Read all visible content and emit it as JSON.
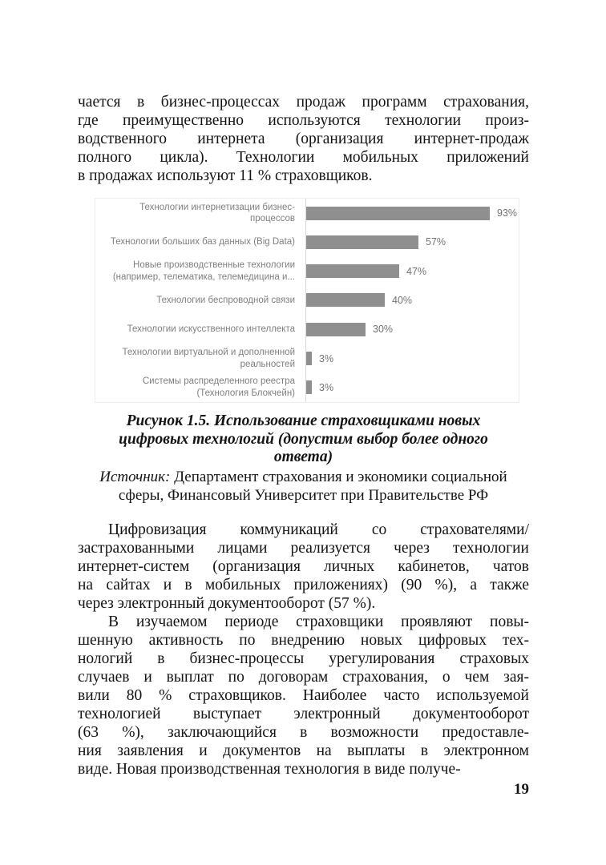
{
  "page": {
    "number": "19"
  },
  "body": {
    "para1_lines": [
      "чается в бизнес-процессах продаж программ страхования,",
      "где преимущественно используются технологии произ-",
      "водственного интернета (организация интернет-продаж",
      "полного цикла). Технологии мобильных приложений",
      "в продажах используют 11 % страховщиков."
    ],
    "para2_lines": [
      "Цифровизация коммуникаций со страхователями/",
      "застрахованными лицами реализуется через технологии",
      "интернет-систем (организация личных кабинетов, чатов",
      "на сайтах и в мобильных приложениях) (90 %), а также",
      "через электронный документооборот (57 %)."
    ],
    "para3_lines": [
      "В изучаемом периоде страховщики проявляют повы-",
      "шенную активность по внедрению новых цифровых тех-",
      "нологий в бизнес-процессы урегулирования страховых",
      "случаев и выплат по договорам страхования, о чем зая-",
      "вили 80 % страховщиков. Наиболее часто используемой",
      "технологией выступает электронный документооборот",
      "(63 %), заключающийся в возможности предоставле-",
      "ния заявления и документов на выплаты в электронном",
      "виде. Новая производственная технология в виде получе-"
    ]
  },
  "figure": {
    "caption_lines": [
      "Рисунок 1.5. Использование страховщиками новых",
      "цифровых технологий (допустим выбор более одного",
      "ответа)"
    ],
    "source_label": "Источник:",
    "source_line1_rest": " Департамент страхования и экономики социальной",
    "source_line2": "сферы, Финансовый Университет при Правительстве РФ"
  },
  "chart_data": {
    "type": "bar",
    "orientation": "horizontal",
    "title": "",
    "categories": [
      "Технологии интернетизации бизнес-процессов",
      "Технологии больших баз данных (Big Data)",
      "Новые производственные технологии (например, телематика, телемедицина и...",
      "Технологии беспроводной связи",
      "Технологии искусственного интеллекта",
      "Технологии виртуальной и дополненной реальностей",
      "Системы распределенного реестра (Технология Блокчейн)"
    ],
    "category_label_lines": [
      [
        "Технологии интернетизации бизнес-процессов"
      ],
      [
        "Технологии больших баз данных (Big Data)"
      ],
      [
        "Новые производственные технологии",
        "(например, телематика, телемедицина и..."
      ],
      [
        "Технологии беспроводной связи"
      ],
      [
        "Технологии искусственного интеллекта"
      ],
      [
        "Технологии виртуальной и дополненной",
        "реальностей"
      ],
      [
        "Системы распределенного реестра",
        "(Технология Блокчейн)"
      ]
    ],
    "values": [
      93,
      57,
      47,
      40,
      30,
      3,
      3
    ],
    "value_labels": [
      "93%",
      "57%",
      "47%",
      "40%",
      "30%",
      "3%",
      "3%"
    ],
    "xlim": [
      0,
      100
    ],
    "grid": false,
    "legend": false,
    "bar_color": "#8f8f8f",
    "axis_color": "#d9d9d9",
    "category_color": "#7f7f7f",
    "value_color": "#737373"
  }
}
